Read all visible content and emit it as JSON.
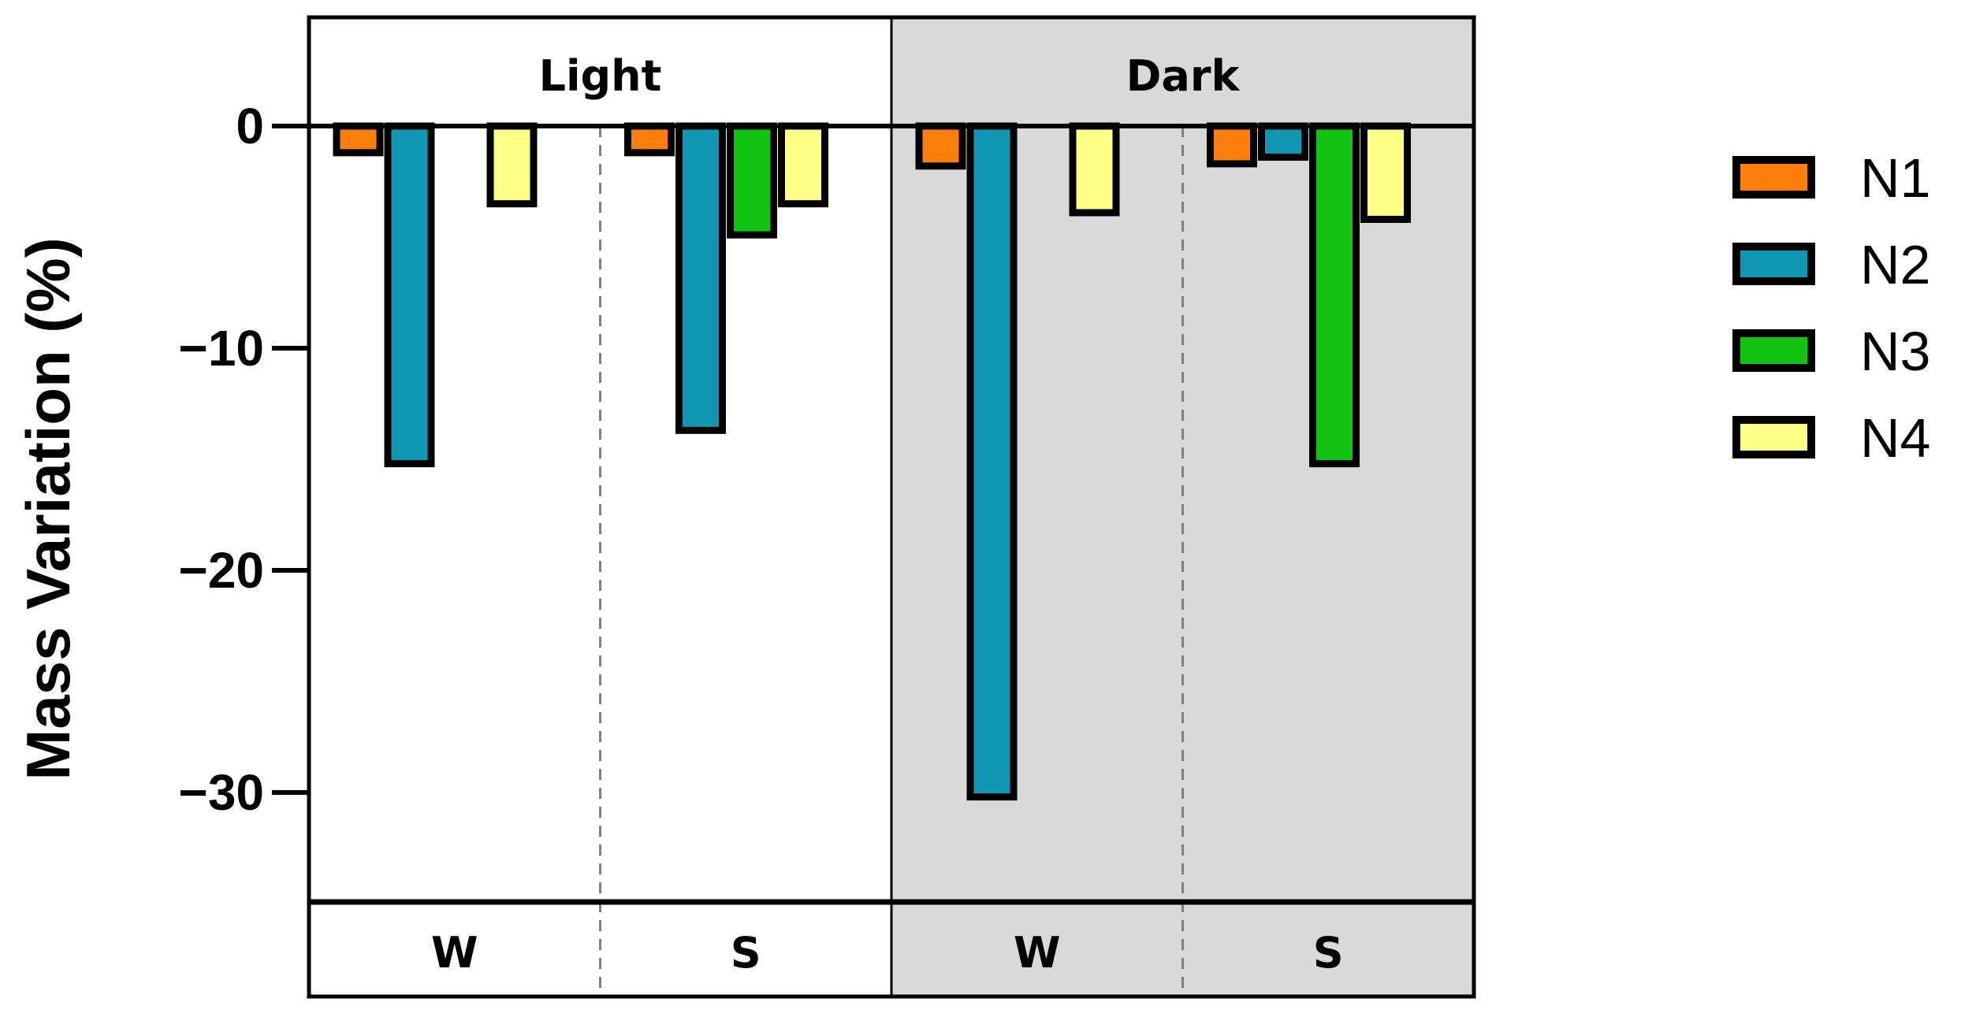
{
  "chart_data": {
    "type": "bar",
    "title": "",
    "xlabel": "",
    "ylabel": "Mass Variation (%)",
    "ylim": [
      -35,
      5
    ],
    "yticks": [
      0,
      -10,
      -20,
      -30
    ],
    "ytick_labels": [
      "0",
      "-10",
      "-20",
      "-30"
    ],
    "panels": [
      {
        "label": "Light",
        "background": "#ffffff",
        "groups": [
          "W",
          "S"
        ]
      },
      {
        "label": "Dark",
        "background": "#d9d9d9",
        "groups": [
          "W",
          "S"
        ]
      }
    ],
    "categories": [
      "Light W",
      "Light S",
      "Dark W",
      "Dark S"
    ],
    "series": [
      {
        "name": "N1",
        "color": "#ff7f0e",
        "values": [
          -1.2,
          -1.2,
          -1.8,
          -1.7
        ]
      },
      {
        "name": "N2",
        "color": "#1196b4",
        "values": [
          -15.2,
          -13.7,
          -30.2,
          -1.4
        ]
      },
      {
        "name": "N3",
        "color": "#11c411",
        "values": [
          0,
          -4.9,
          0,
          -15.2
        ]
      },
      {
        "name": "N4",
        "color": "#ffff88",
        "values": [
          -3.5,
          -3.5,
          -3.9,
          -4.2
        ]
      }
    ],
    "legend": "right",
    "grid": false
  }
}
